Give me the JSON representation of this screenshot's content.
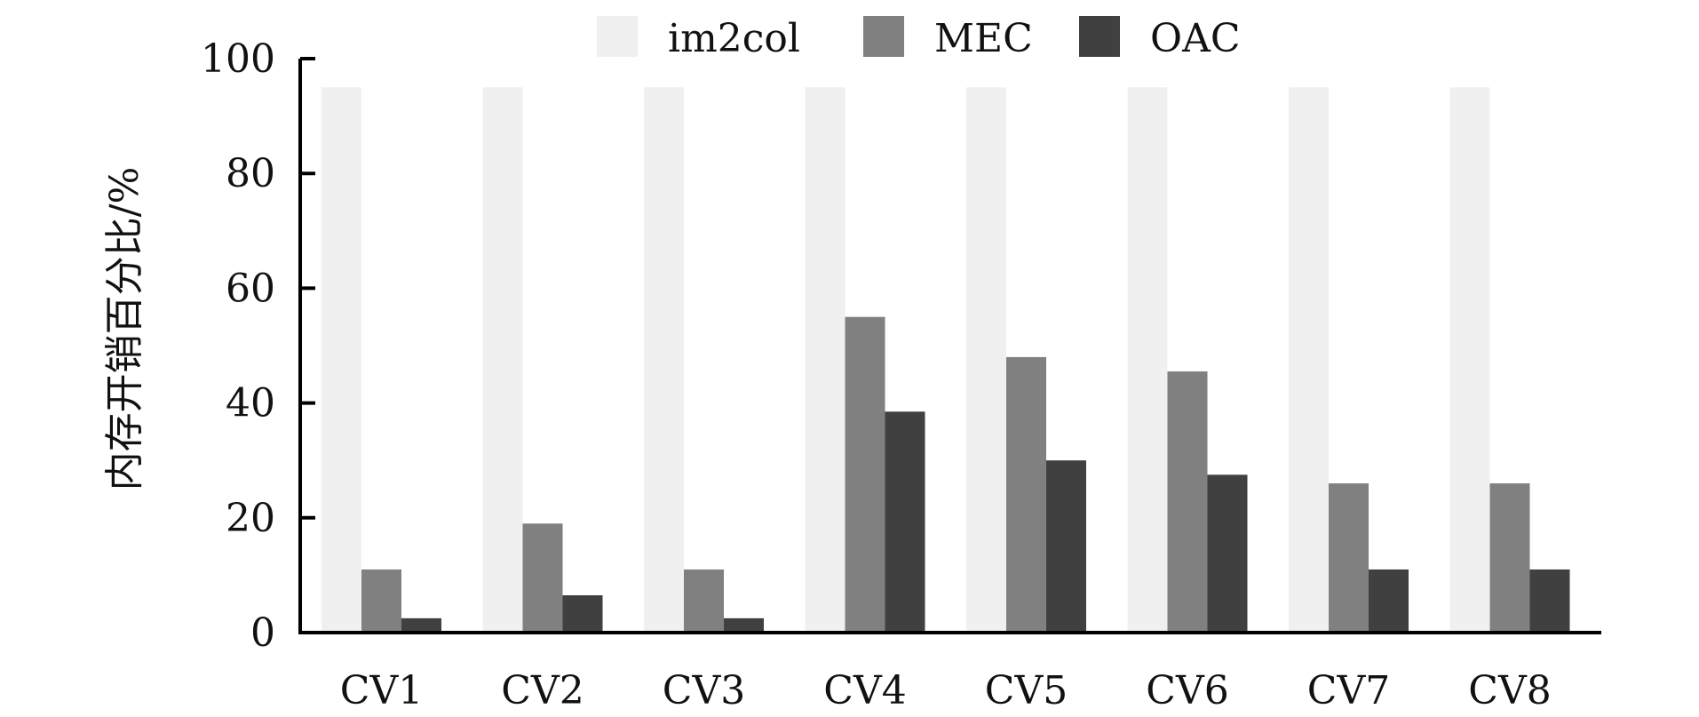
{
  "chart_data": {
    "type": "bar",
    "title": "",
    "xlabel": "",
    "ylabel": "内存开销百分比/%",
    "categories": [
      "CV1",
      "CV2",
      "CV3",
      "CV4",
      "CV5",
      "CV6",
      "CV7",
      "CV8"
    ],
    "series": [
      {
        "name": "im2col",
        "color": "#f0f0f0",
        "values": [
          95,
          95,
          95,
          95,
          95,
          95,
          95,
          95
        ]
      },
      {
        "name": "MEC",
        "color": "#808080",
        "values": [
          11,
          19,
          11,
          55,
          48,
          45.5,
          26,
          26
        ]
      },
      {
        "name": "OAC",
        "color": "#404040",
        "values": [
          2.5,
          6.5,
          2.5,
          38.5,
          30,
          27.5,
          11,
          11
        ]
      }
    ],
    "ylim": [
      0,
      100
    ],
    "yticks": [
      0,
      20,
      40,
      60,
      80,
      100
    ],
    "grid": false,
    "legend_position": "top"
  }
}
